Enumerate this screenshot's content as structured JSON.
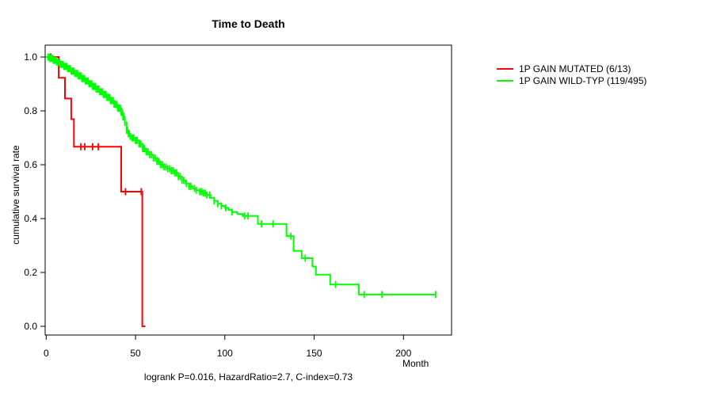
{
  "title": "Time to Death",
  "axes": {
    "x": {
      "label": "Month",
      "tick_labels": [
        "0",
        "50",
        "100",
        "150",
        "200"
      ],
      "tick_values": [
        0,
        50,
        100,
        150,
        200
      ]
    },
    "y": {
      "label": "cumulative survival rate",
      "tick_labels": [
        "0.0",
        "0.2",
        "0.4",
        "0.6",
        "0.8",
        "1.0"
      ],
      "tick_values": [
        0,
        0.2,
        0.4,
        0.6,
        0.8,
        1.0
      ]
    }
  },
  "legend": {
    "position": "right",
    "items": [
      {
        "label": "1P GAIN MUTATED (6/13)",
        "color": "#ff0000"
      },
      {
        "label": "1P GAIN WILD-TYP (119/495)",
        "color": "#00ff00"
      }
    ]
  },
  "chart_data": {
    "type": "line",
    "subtype": "kaplan-meier-step",
    "title": "Time to Death",
    "xlabel": "Month",
    "ylabel": "cumulative survival rate",
    "xlim": [
      0,
      227
    ],
    "ylim": [
      0.0,
      1.0
    ],
    "grid": false,
    "background": "#ffffff",
    "annotation": "logrank P=0.016, HazardRatio=2.7, C-index=0.73",
    "series": [
      {
        "name": "1P GAIN MUTATED (6/13)",
        "color": "#ff0000",
        "steps": [
          [
            0,
            1.0
          ],
          [
            7,
            0.923
          ],
          [
            10.5,
            0.846
          ],
          [
            14,
            0.769
          ],
          [
            15.5,
            0.667
          ],
          [
            42,
            0.5
          ],
          [
            53.8,
            0.0
          ]
        ],
        "end": 55.5,
        "censor_months": [
          2.5,
          19.4,
          21.6,
          26,
          29.2,
          44.4,
          53.2
        ]
      },
      {
        "name": "1P GAIN WILD-TYP (119/495)",
        "color": "#00ff00",
        "steps": [
          [
            0,
            1.0
          ],
          [
            2,
            0.995
          ],
          [
            4,
            0.988
          ],
          [
            6,
            0.981
          ],
          [
            8,
            0.973
          ],
          [
            10,
            0.965
          ],
          [
            12,
            0.957
          ],
          [
            14,
            0.948
          ],
          [
            16,
            0.939
          ],
          [
            18,
            0.93
          ],
          [
            20,
            0.92
          ],
          [
            22,
            0.911
          ],
          [
            24,
            0.901
          ],
          [
            26,
            0.891
          ],
          [
            28,
            0.881
          ],
          [
            30,
            0.871
          ],
          [
            32,
            0.861
          ],
          [
            34,
            0.85
          ],
          [
            36,
            0.838
          ],
          [
            38,
            0.824
          ],
          [
            40,
            0.81
          ],
          [
            42,
            0.795
          ],
          [
            43,
            0.778
          ],
          [
            44,
            0.757
          ],
          [
            45,
            0.728
          ],
          [
            46,
            0.715
          ],
          [
            47,
            0.706
          ],
          [
            48,
            0.7
          ],
          [
            50,
            0.69
          ],
          [
            52,
            0.677
          ],
          [
            54,
            0.66
          ],
          [
            56,
            0.648
          ],
          [
            58,
            0.637
          ],
          [
            60,
            0.625
          ],
          [
            62,
            0.612
          ],
          [
            64,
            0.6
          ],
          [
            66,
            0.592
          ],
          [
            68,
            0.585
          ],
          [
            70,
            0.578
          ],
          [
            72,
            0.57
          ],
          [
            74,
            0.556
          ],
          [
            76,
            0.542
          ],
          [
            78,
            0.53
          ],
          [
            80,
            0.52
          ],
          [
            82,
            0.512
          ],
          [
            84,
            0.505
          ],
          [
            86,
            0.5
          ],
          [
            88,
            0.495
          ],
          [
            90,
            0.488
          ],
          [
            92,
            0.477
          ],
          [
            94,
            0.466
          ],
          [
            96,
            0.455
          ],
          [
            98,
            0.447
          ],
          [
            100,
            0.44
          ],
          [
            102,
            0.432
          ],
          [
            104,
            0.424
          ],
          [
            107,
            0.417
          ],
          [
            110,
            0.41
          ],
          [
            118.5,
            0.38
          ],
          [
            134.5,
            0.335
          ],
          [
            138.5,
            0.28
          ],
          [
            143,
            0.253
          ],
          [
            149,
            0.222
          ],
          [
            151,
            0.192
          ],
          [
            159,
            0.155
          ],
          [
            175,
            0.118
          ]
        ],
        "end": 218,
        "censor_months": [
          1,
          1.5,
          2,
          2.5,
          3,
          3.5,
          4,
          4.5,
          5,
          5.5,
          6,
          6.5,
          7,
          7.5,
          8,
          8.5,
          9,
          9.5,
          10,
          10.5,
          11,
          11.5,
          12,
          12.5,
          13,
          13.5,
          14,
          14.5,
          15,
          15.5,
          16,
          16.5,
          17,
          17.5,
          18,
          18.5,
          19,
          19.5,
          20,
          20.5,
          21,
          21.5,
          22,
          22.5,
          23,
          23.5,
          24,
          24.5,
          25,
          25.5,
          26,
          26.5,
          27,
          27.5,
          28,
          28.5,
          29,
          29.5,
          30,
          30.5,
          31,
          31.5,
          32,
          32.5,
          33,
          33.5,
          34,
          34.5,
          35,
          35.5,
          36,
          36.5,
          37,
          37.5,
          38,
          38.5,
          39,
          39.5,
          40,
          40.5,
          41,
          41.5,
          42,
          42.5,
          43,
          43.5,
          44,
          45,
          45.5,
          46,
          46.5,
          47,
          48,
          48.5,
          49,
          50,
          50.5,
          51,
          52,
          52.5,
          53,
          54,
          54.5,
          55,
          56,
          57,
          58,
          59,
          60,
          61,
          62,
          63,
          64,
          65,
          66,
          67,
          68,
          69,
          70,
          71,
          72,
          73,
          74,
          75,
          76,
          77,
          78.5,
          80,
          81,
          83,
          84,
          86,
          87,
          88,
          89,
          90,
          91.5,
          94,
          96,
          98,
          100.5,
          104,
          111,
          113,
          120.5,
          127,
          137,
          145,
          162,
          178,
          188,
          218
        ]
      }
    ]
  }
}
